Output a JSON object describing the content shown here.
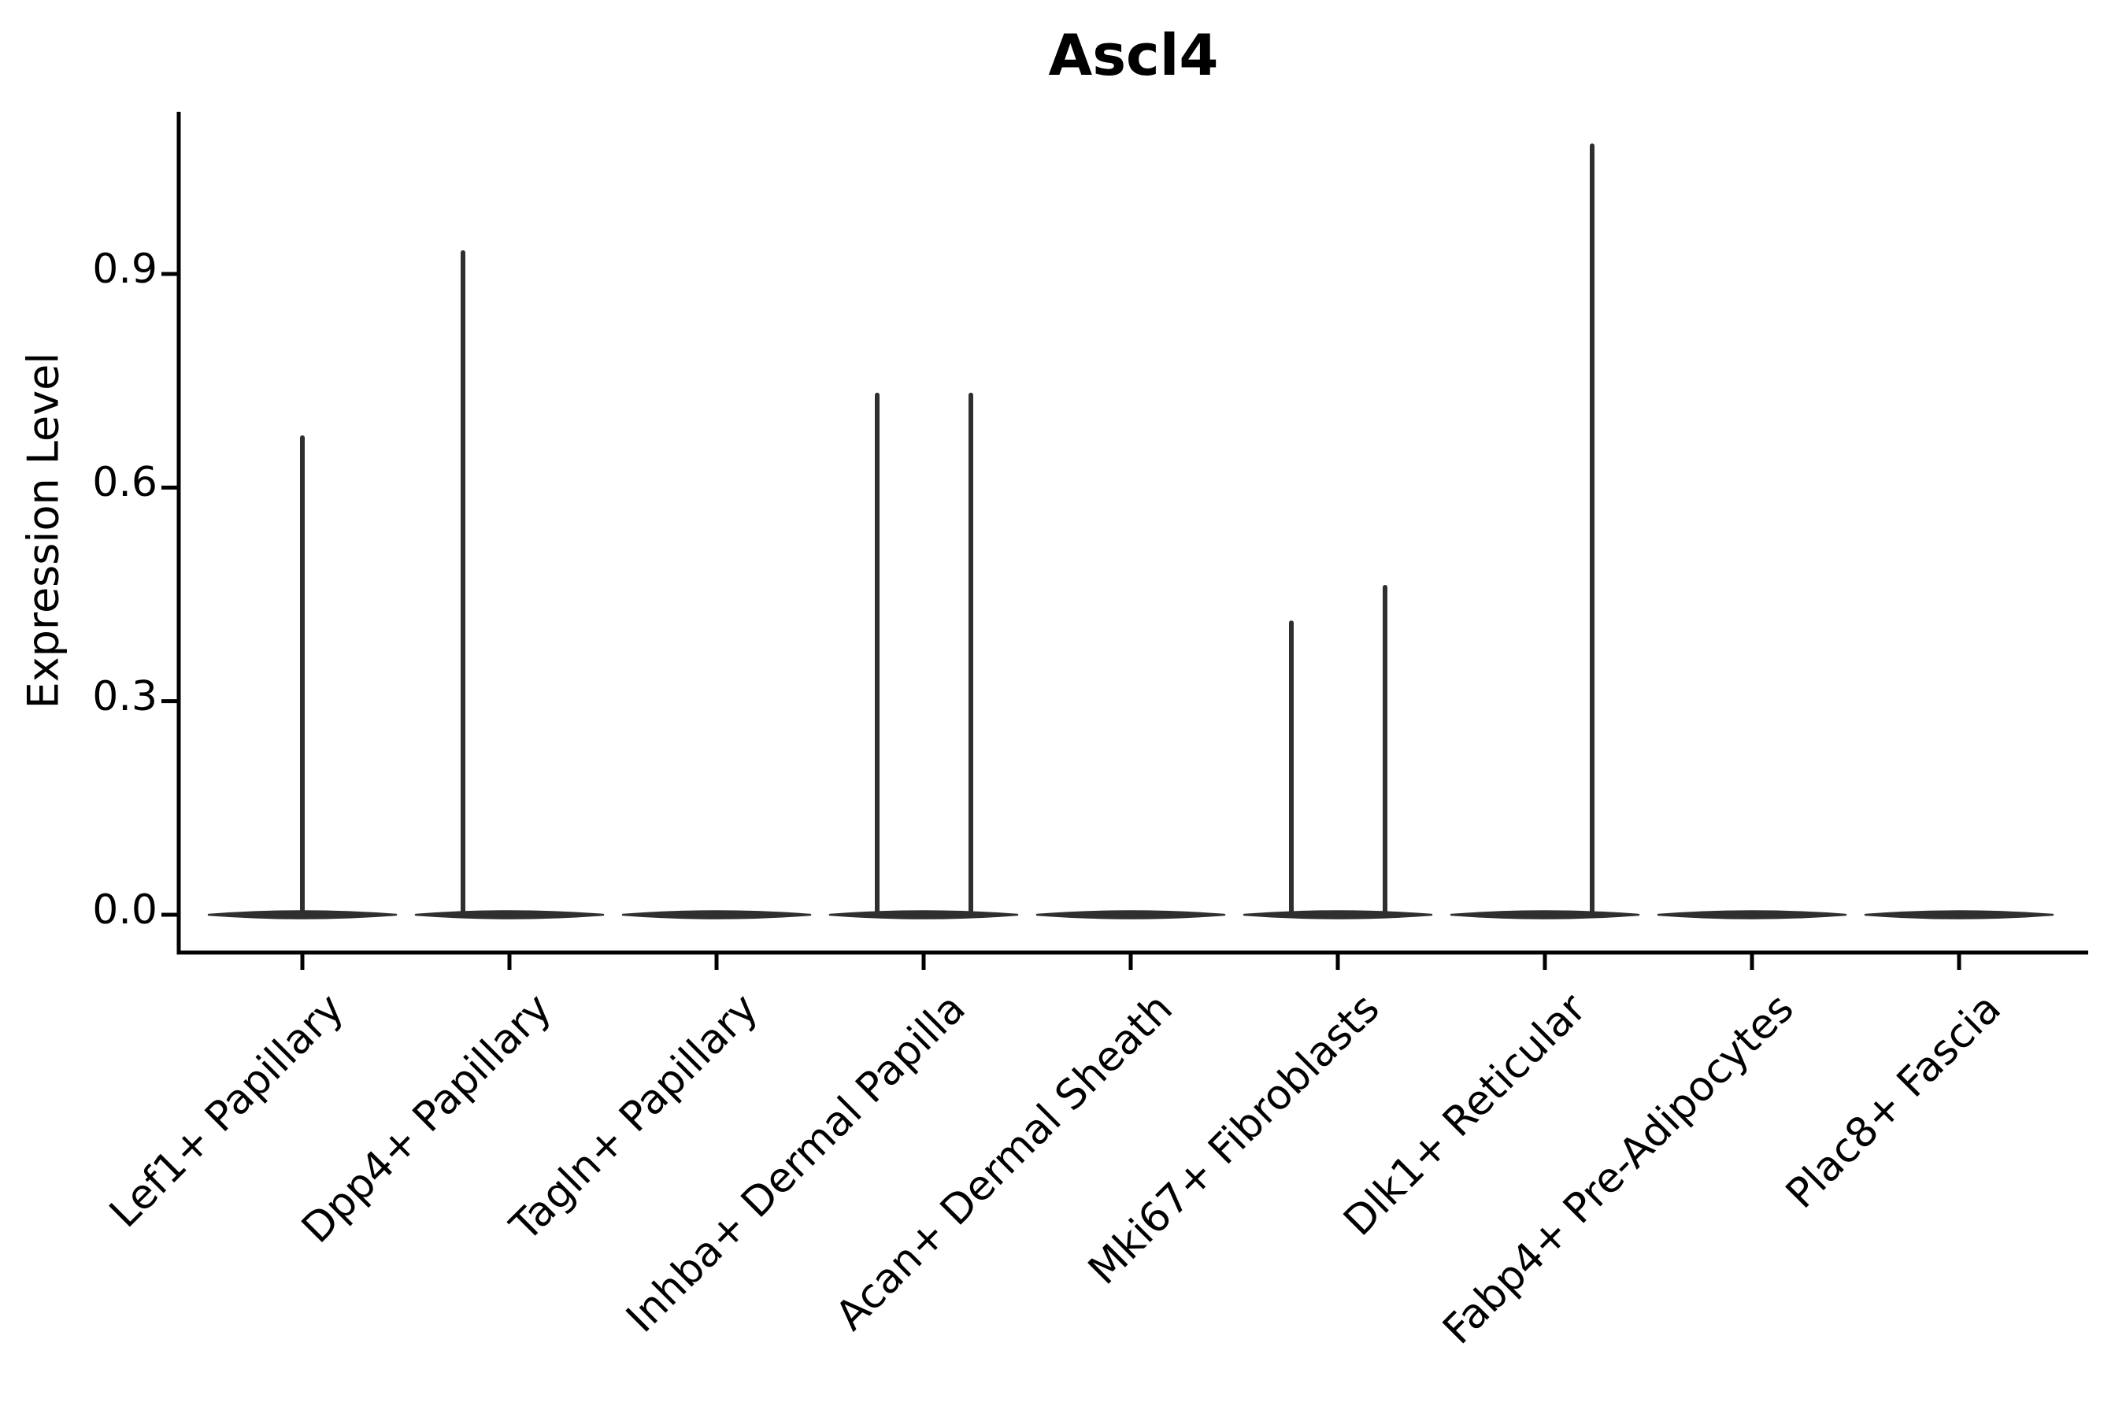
{
  "chart_data": {
    "type": "violin",
    "title": "Ascl4",
    "ylabel": "Expression Level",
    "xlabel": "",
    "grid": false,
    "legend_position": "none",
    "ytick_labels": [
      "0.0",
      "0.3",
      "0.6",
      "0.9"
    ],
    "ytick_values": [
      0.0,
      0.3,
      0.6,
      0.9
    ],
    "ylim": [
      -0.053,
      1.128
    ],
    "categories": [
      "Lef1+ Papillary",
      "Dpp4+ Papillary",
      "Tagln+ Papillary",
      "Inhba+ Dermal Papilla",
      "Acan+ Dermal Sheath",
      "Mki67+ Fibroblasts",
      "Dlk1+ Reticular",
      "Fabp4+ Pre-Adipocytes",
      "Plac8+ Fascia"
    ],
    "violins": [
      {
        "category": "Lef1+ Papillary",
        "base_value": 0.0,
        "spikes": [
          {
            "offset": "center",
            "value": 0.67
          }
        ]
      },
      {
        "category": "Dpp4+ Papillary",
        "base_value": 0.0,
        "spikes": [
          {
            "offset": "left",
            "value": 0.93
          }
        ]
      },
      {
        "category": "Tagln+ Papillary",
        "base_value": 0.0,
        "spikes": []
      },
      {
        "category": "Inhba+ Dermal Papilla",
        "base_value": 0.0,
        "spikes": [
          {
            "offset": "left",
            "value": 0.73
          },
          {
            "offset": "right",
            "value": 0.73
          }
        ]
      },
      {
        "category": "Acan+ Dermal Sheath",
        "base_value": 0.0,
        "spikes": []
      },
      {
        "category": "Mki67+ Fibroblasts",
        "base_value": 0.0,
        "spikes": [
          {
            "offset": "left",
            "value": 0.41
          },
          {
            "offset": "right",
            "value": 0.46
          }
        ]
      },
      {
        "category": "Dlk1+ Reticular",
        "base_value": 0.0,
        "spikes": [
          {
            "offset": "right",
            "value": 1.08
          }
        ]
      },
      {
        "category": "Fabp4+ Pre-Adipocytes",
        "base_value": 0.0,
        "spikes": []
      },
      {
        "category": "Plac8+ Fascia",
        "base_value": 0.0,
        "spikes": []
      }
    ],
    "colors": {
      "spine": "#000000",
      "violin_stroke": "#2f2f2f",
      "text": "#000000",
      "background": "#ffffff"
    }
  }
}
